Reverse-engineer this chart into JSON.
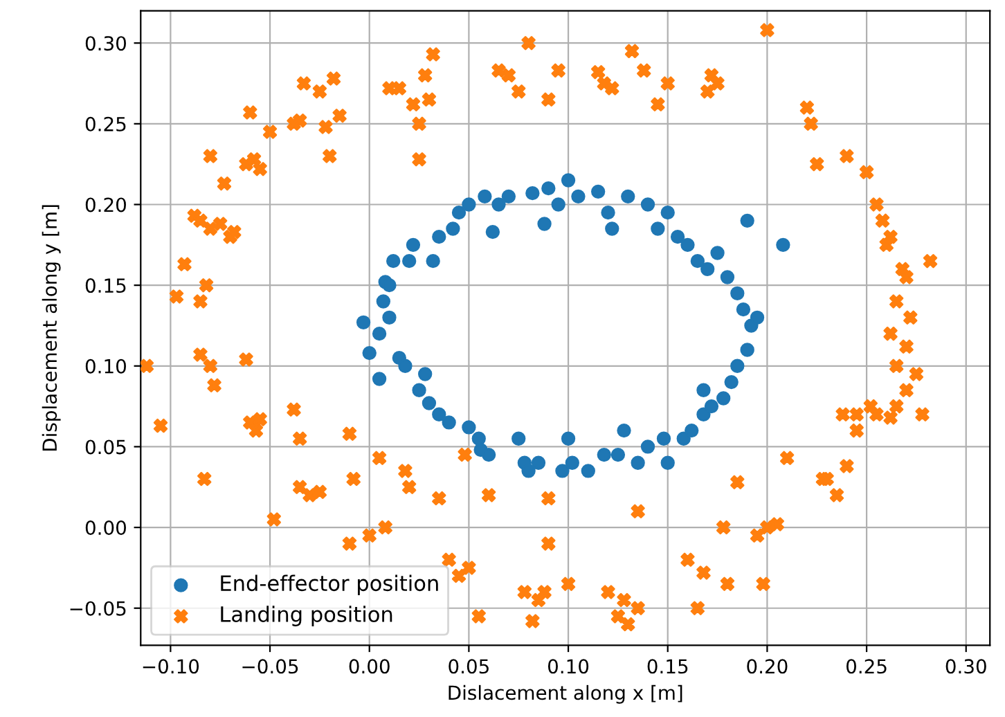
{
  "chart_data": {
    "type": "scatter",
    "xlabel": "Dislacement along x [m]",
    "ylabel": "Displacement along y [m]",
    "xlim": [
      -0.115,
      0.312
    ],
    "ylim": [
      -0.073,
      0.32
    ],
    "xticks": [
      {
        "value": -0.1,
        "label": "−0.10"
      },
      {
        "value": -0.05,
        "label": "−0.05"
      },
      {
        "value": 0,
        "label": "0.00"
      },
      {
        "value": 0.05,
        "label": "0.05"
      },
      {
        "value": 0.1,
        "label": "0.10"
      },
      {
        "value": 0.15,
        "label": "0.15"
      },
      {
        "value": 0.2,
        "label": "0.20"
      },
      {
        "value": 0.25,
        "label": "0.25"
      },
      {
        "value": 0.3,
        "label": "0.30"
      }
    ],
    "yticks": [
      {
        "value": -0.05,
        "label": "−0.05"
      },
      {
        "value": 0,
        "label": "0.00"
      },
      {
        "value": 0.05,
        "label": "0.05"
      },
      {
        "value": 0.1,
        "label": "0.10"
      },
      {
        "value": 0.15,
        "label": "0.15"
      },
      {
        "value": 0.2,
        "label": "0.20"
      },
      {
        "value": 0.25,
        "label": "0.25"
      },
      {
        "value": 0.3,
        "label": "0.30"
      }
    ],
    "grid": true,
    "legend": "bottom left",
    "series": [
      {
        "name": "End-effector position",
        "color": "#1f77b4",
        "marker": "circle",
        "x": [
          -0.003,
          0.0,
          0.005,
          0.005,
          0.007,
          0.008,
          0.01,
          0.01,
          0.012,
          0.015,
          0.018,
          0.02,
          0.022,
          0.025,
          0.028,
          0.03,
          0.032,
          0.035,
          0.035,
          0.04,
          0.042,
          0.045,
          0.05,
          0.05,
          0.055,
          0.056,
          0.058,
          0.06,
          0.062,
          0.065,
          0.07,
          0.075,
          0.078,
          0.08,
          0.082,
          0.085,
          0.088,
          0.09,
          0.095,
          0.097,
          0.1,
          0.1,
          0.102,
          0.105,
          0.11,
          0.115,
          0.118,
          0.12,
          0.122,
          0.125,
          0.128,
          0.13,
          0.135,
          0.14,
          0.14,
          0.145,
          0.148,
          0.15,
          0.15,
          0.155,
          0.158,
          0.16,
          0.162,
          0.165,
          0.168,
          0.17,
          0.172,
          0.175,
          0.178,
          0.18,
          0.182,
          0.185,
          0.185,
          0.188,
          0.19,
          0.192,
          0.195,
          0.19,
          0.208,
          0.168
        ],
        "values": [
          0.127,
          0.108,
          0.092,
          0.12,
          0.14,
          0.152,
          0.15,
          0.13,
          0.165,
          0.105,
          0.1,
          0.165,
          0.175,
          0.085,
          0.095,
          0.077,
          0.165,
          0.18,
          0.07,
          0.065,
          0.185,
          0.195,
          0.062,
          0.2,
          0.055,
          0.048,
          0.205,
          0.045,
          0.183,
          0.2,
          0.205,
          0.055,
          0.04,
          0.035,
          0.207,
          0.04,
          0.188,
          0.21,
          0.2,
          0.035,
          0.055,
          0.215,
          0.04,
          0.205,
          0.035,
          0.208,
          0.045,
          0.195,
          0.185,
          0.045,
          0.06,
          0.205,
          0.04,
          0.05,
          0.2,
          0.185,
          0.055,
          0.04,
          0.195,
          0.18,
          0.055,
          0.175,
          0.06,
          0.165,
          0.07,
          0.16,
          0.075,
          0.17,
          0.08,
          0.155,
          0.09,
          0.145,
          0.1,
          0.135,
          0.11,
          0.125,
          0.13,
          0.19,
          0.175,
          0.085
        ]
      },
      {
        "name": "Landing position",
        "color": "#ff7f0e",
        "marker": "cross",
        "x": [
          -0.112,
          -0.105,
          -0.097,
          -0.093,
          -0.088,
          -0.085,
          -0.082,
          -0.085,
          -0.08,
          -0.075,
          -0.07,
          -0.085,
          -0.08,
          -0.078,
          -0.083,
          -0.08,
          -0.073,
          -0.068,
          -0.062,
          -0.058,
          -0.06,
          -0.055,
          -0.05,
          -0.062,
          -0.06,
          -0.057,
          -0.055,
          -0.048,
          -0.038,
          -0.035,
          -0.033,
          -0.038,
          -0.035,
          -0.035,
          -0.03,
          -0.025,
          -0.025,
          -0.022,
          -0.018,
          -0.02,
          -0.015,
          -0.01,
          -0.008,
          -0.01,
          0.0,
          0.005,
          0.008,
          0.01,
          0.015,
          0.018,
          0.02,
          0.022,
          0.025,
          0.025,
          0.028,
          0.03,
          0.032,
          0.035,
          0.04,
          0.045,
          0.048,
          0.05,
          0.055,
          0.06,
          0.065,
          0.07,
          0.075,
          0.078,
          0.08,
          0.082,
          0.085,
          0.088,
          0.09,
          0.09,
          0.09,
          0.095,
          0.1,
          0.115,
          0.118,
          0.12,
          0.122,
          0.125,
          0.128,
          0.13,
          0.132,
          0.135,
          0.135,
          0.138,
          0.145,
          0.15,
          0.16,
          0.165,
          0.168,
          0.17,
          0.172,
          0.175,
          0.178,
          0.18,
          0.185,
          0.2,
          0.195,
          0.198,
          0.2,
          0.205,
          0.21,
          0.22,
          0.222,
          0.225,
          0.228,
          0.23,
          0.235,
          0.238,
          0.24,
          0.245,
          0.25,
          0.252,
          0.255,
          0.258,
          0.26,
          0.262,
          0.265,
          0.268,
          0.27,
          0.272,
          0.262,
          0.265,
          0.27,
          0.275,
          0.278,
          0.282,
          0.27,
          0.265,
          0.255,
          0.24,
          0.245,
          0.262
        ],
        "values": [
          0.1,
          0.063,
          0.143,
          0.163,
          0.193,
          0.19,
          0.15,
          0.14,
          0.185,
          0.188,
          0.18,
          0.107,
          0.1,
          0.088,
          0.03,
          0.23,
          0.213,
          0.183,
          0.225,
          0.228,
          0.257,
          0.222,
          0.245,
          0.104,
          0.065,
          0.06,
          0.067,
          0.005,
          0.25,
          0.252,
          0.275,
          0.073,
          0.055,
          0.025,
          0.02,
          0.022,
          0.27,
          0.248,
          0.278,
          0.23,
          0.255,
          0.058,
          0.03,
          -0.01,
          -0.005,
          0.043,
          0.0,
          0.272,
          0.272,
          0.035,
          0.025,
          0.262,
          0.25,
          0.228,
          0.28,
          0.265,
          0.293,
          0.018,
          -0.02,
          -0.03,
          0.045,
          -0.025,
          -0.055,
          0.02,
          0.283,
          0.28,
          0.27,
          -0.04,
          0.3,
          -0.058,
          -0.045,
          -0.04,
          0.018,
          -0.01,
          0.265,
          0.283,
          -0.035,
          0.282,
          0.275,
          -0.04,
          0.272,
          -0.055,
          -0.045,
          -0.06,
          0.295,
          0.01,
          -0.05,
          0.283,
          0.262,
          0.275,
          -0.02,
          -0.05,
          -0.028,
          0.27,
          0.28,
          0.275,
          0.0,
          -0.035,
          0.028,
          0.308,
          -0.005,
          -0.035,
          0.0,
          0.002,
          0.043,
          0.26,
          0.25,
          0.225,
          0.03,
          0.03,
          0.02,
          0.07,
          0.23,
          0.06,
          0.22,
          0.075,
          0.2,
          0.19,
          0.175,
          0.18,
          0.14,
          0.16,
          0.155,
          0.13,
          0.12,
          0.1,
          0.112,
          0.095,
          0.07,
          0.165,
          0.085,
          0.075,
          0.07,
          0.038,
          0.07,
          0.068
        ]
      }
    ]
  }
}
